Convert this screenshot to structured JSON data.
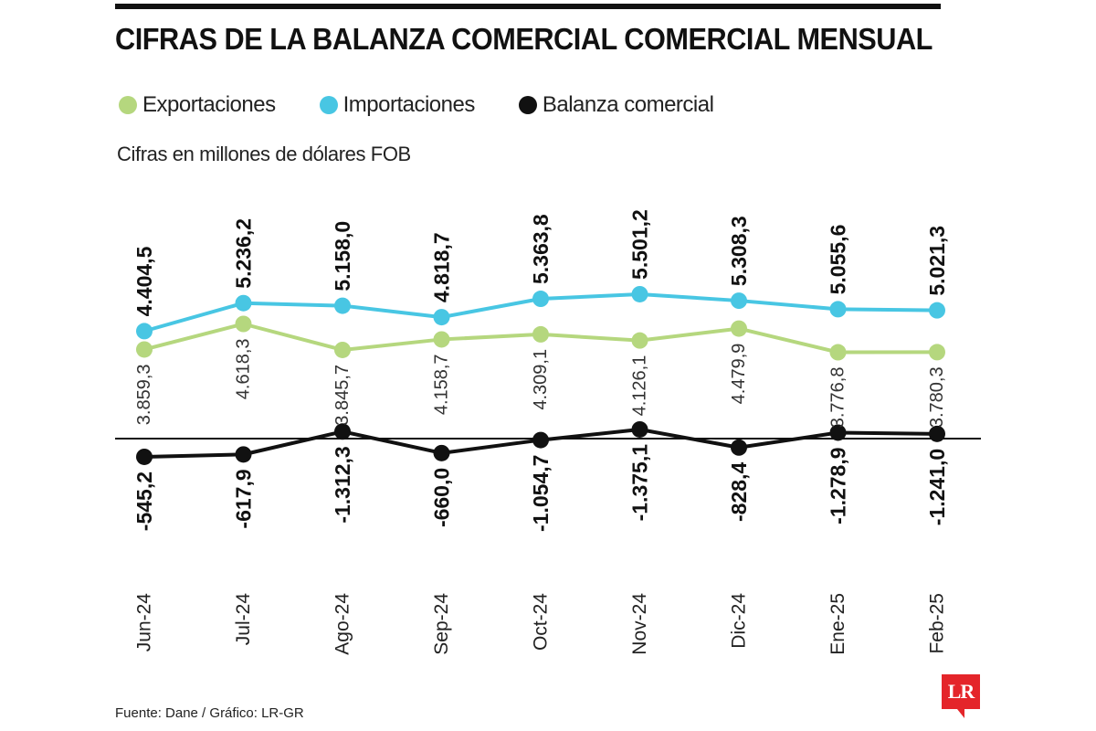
{
  "title": "CIFRAS DE LA BALANZA COMERCIAL COMERCIAL MENSUAL",
  "legend": [
    {
      "label": "Exportaciones",
      "color": "#b5d77e"
    },
    {
      "label": "Importaciones",
      "color": "#48c6e3"
    },
    {
      "label": "Balanza comercial",
      "color": "#111111"
    }
  ],
  "subtitle": "Cifras en millones de dólares FOB",
  "footer": "Fuente: Dane / Gráfico: LR-GR",
  "logo_text": "LR",
  "chart_data": {
    "type": "line",
    "categories": [
      "Jun-24",
      "Jul-24",
      "Ago-24",
      "Sep-24",
      "Oct-24",
      "Nov-24",
      "Dic-24",
      "Ene-25",
      "Feb-25"
    ],
    "series": [
      {
        "name": "Exportaciones",
        "color": "#b5d77e",
        "values": [
          3859.3,
          4618.3,
          3845.7,
          4158.7,
          4309.1,
          4126.1,
          4479.9,
          3776.8,
          3780.3
        ],
        "labels": [
          "3.859,3",
          "4.618,3",
          "3.845,7",
          "4.158,7",
          "4.309,1",
          "4.126,1",
          "4.479,9",
          "3.776,8",
          "3.780,3"
        ]
      },
      {
        "name": "Importaciones",
        "color": "#48c6e3",
        "values": [
          4404.5,
          5236.2,
          5158.0,
          4818.7,
          5363.8,
          5501.2,
          5308.3,
          5055.6,
          5021.3
        ],
        "labels": [
          "4.404,5",
          "5.236,2",
          "5.158,0",
          "4.818,7",
          "5.363,8",
          "5.501,2",
          "5.308,3",
          "5.055,6",
          "5.021,3"
        ]
      },
      {
        "name": "Balanza comercial",
        "color": "#111111",
        "values": [
          -545.2,
          -617.9,
          -1312.3,
          -660.0,
          -1054.7,
          -1375.1,
          -828.4,
          -1278.9,
          -1241.0
        ],
        "labels": [
          "-545,2",
          "-617,9",
          "-1.312,3",
          "-660,0",
          "-1.054,7",
          "-1.375,1",
          "-828,4",
          "-1.278,9",
          "-1.241,0"
        ]
      }
    ]
  }
}
